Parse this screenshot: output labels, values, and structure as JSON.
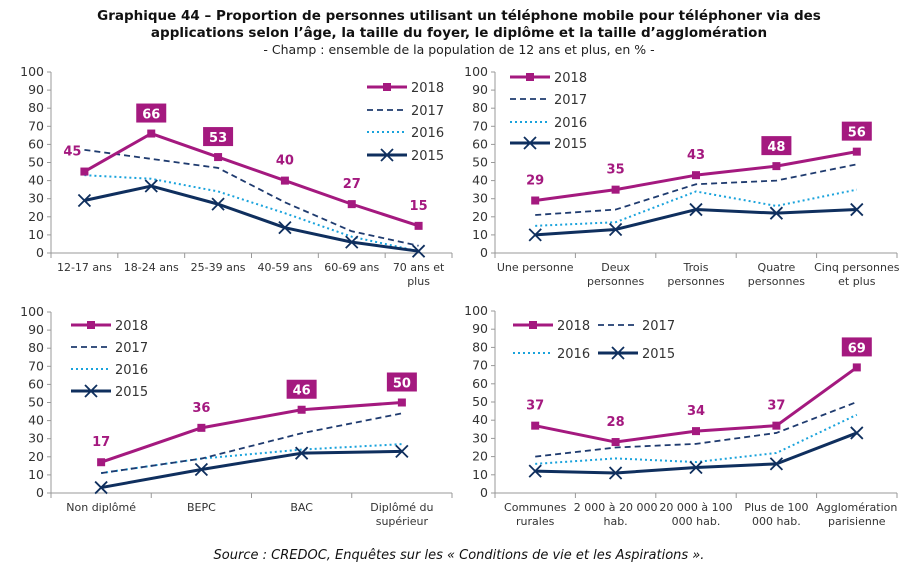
{
  "title_line1": "Graphique 44 – Proportion de personnes utilisant un téléphone mobile pour téléphoner via des",
  "title_line2": "applications selon l’âge, la taille du foyer, le diplôme et la taille d’agglomération",
  "subtitle": "- Champ : ensemble de la population de 12 ans et plus, en % -",
  "source": "Source : CREDOC, Enquêtes sur les « Conditions de vie et les Aspirations ».",
  "colors": {
    "2018": "#a4197f",
    "2017": "#1f3b6f",
    "2016": "#1aa3dc",
    "2015": "#0f2f5e"
  },
  "chart_data": [
    {
      "type": "line",
      "categories": [
        [
          "12-17 ans"
        ],
        [
          "18-24 ans"
        ],
        [
          "25-39 ans"
        ],
        [
          "40-59 ans"
        ],
        [
          "60-69 ans"
        ],
        [
          "70 ans et",
          "plus"
        ]
      ],
      "ylim": [
        0,
        100
      ],
      "yticks": [
        0,
        10,
        20,
        30,
        40,
        50,
        60,
        70,
        80,
        90,
        100
      ],
      "series": [
        {
          "name": "2018",
          "values": [
            45,
            66,
            53,
            40,
            27,
            15
          ],
          "labels": [
            "45",
            "66",
            "53",
            "40",
            "27",
            "15"
          ],
          "boxed": [
            false,
            true,
            true,
            false,
            false,
            false
          ]
        },
        {
          "name": "2017",
          "values": [
            57,
            52,
            47,
            28,
            12,
            4
          ]
        },
        {
          "name": "2016",
          "values": [
            43,
            41,
            34,
            22,
            9,
            1
          ]
        },
        {
          "name": "2015",
          "values": [
            29,
            37,
            27,
            14,
            6,
            1
          ]
        }
      ],
      "legend": "top-right"
    },
    {
      "type": "line",
      "categories": [
        [
          "Une personne"
        ],
        [
          "Deux",
          "personnes"
        ],
        [
          "Trois",
          "personnes"
        ],
        [
          "Quatre",
          "personnes"
        ],
        [
          "Cinq personnes",
          "et plus"
        ]
      ],
      "ylim": [
        0,
        100
      ],
      "yticks": [
        0,
        10,
        20,
        30,
        40,
        50,
        60,
        70,
        80,
        90,
        100
      ],
      "series": [
        {
          "name": "2018",
          "values": [
            29,
            35,
            43,
            48,
            56
          ],
          "labels": [
            "29",
            "35",
            "43",
            "48",
            "56"
          ],
          "boxed": [
            false,
            false,
            false,
            true,
            true
          ]
        },
        {
          "name": "2017",
          "values": [
            21,
            24,
            38,
            40,
            49
          ]
        },
        {
          "name": "2016",
          "values": [
            15,
            17,
            34,
            26,
            35
          ]
        },
        {
          "name": "2015",
          "values": [
            10,
            13,
            24,
            22,
            24
          ]
        }
      ],
      "legend": "top-left"
    },
    {
      "type": "line",
      "categories": [
        [
          "Non diplômé"
        ],
        [
          "BEPC"
        ],
        [
          "BAC"
        ],
        [
          "Diplômé du",
          "supérieur"
        ]
      ],
      "ylim": [
        0,
        100
      ],
      "yticks": [
        0,
        10,
        20,
        30,
        40,
        50,
        60,
        70,
        80,
        90,
        100
      ],
      "series": [
        {
          "name": "2018",
          "values": [
            17,
            36,
            46,
            50
          ],
          "labels": [
            "17",
            "36",
            "46",
            "50"
          ],
          "boxed": [
            false,
            false,
            true,
            true
          ]
        },
        {
          "name": "2017",
          "values": [
            11,
            19,
            33,
            44
          ]
        },
        {
          "name": "2016",
          "values": [
            11,
            19,
            24,
            27
          ]
        },
        {
          "name": "2015",
          "values": [
            3,
            13,
            22,
            23
          ]
        }
      ],
      "legend": "top-left"
    },
    {
      "type": "line",
      "categories": [
        [
          "Communes",
          "rurales"
        ],
        [
          "2 000 à 20 000",
          "hab."
        ],
        [
          "20 000 à 100",
          "000 hab."
        ],
        [
          "Plus de 100",
          "000 hab."
        ],
        [
          "Agglomération",
          "parisienne"
        ]
      ],
      "ylim": [
        0,
        100
      ],
      "yticks": [
        0,
        10,
        20,
        30,
        40,
        50,
        60,
        70,
        80,
        90,
        100
      ],
      "series": [
        {
          "name": "2018",
          "values": [
            37,
            28,
            34,
            37,
            69
          ],
          "labels": [
            "37",
            "28",
            "34",
            "37",
            "69"
          ],
          "boxed": [
            false,
            false,
            false,
            false,
            true
          ]
        },
        {
          "name": "2017",
          "values": [
            20,
            25,
            27,
            33,
            50
          ]
        },
        {
          "name": "2016",
          "values": [
            16,
            19,
            17,
            22,
            43
          ]
        },
        {
          "name": "2015",
          "values": [
            12,
            11,
            14,
            16,
            33
          ]
        }
      ],
      "legend": "top-left, two columns"
    }
  ]
}
